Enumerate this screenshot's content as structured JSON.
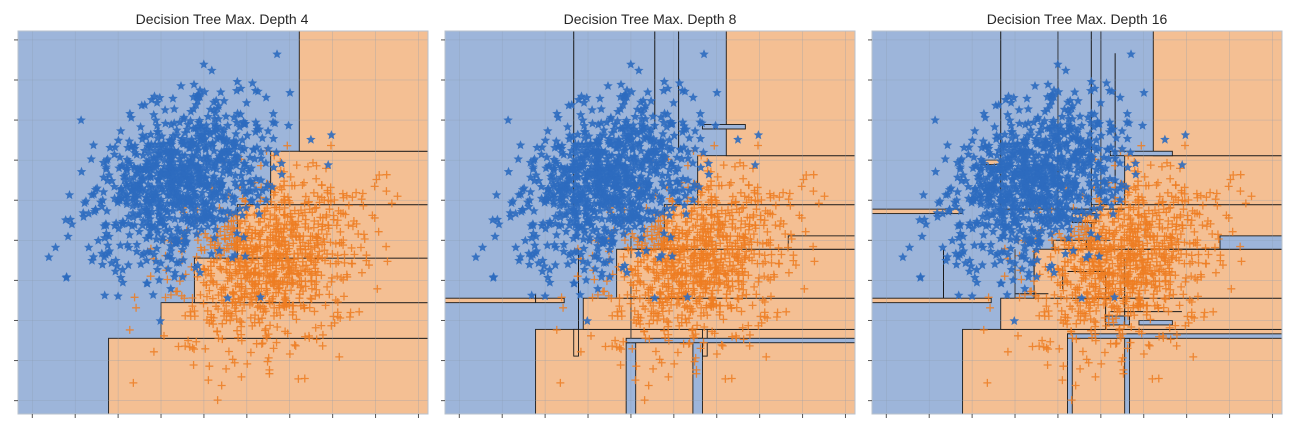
{
  "colors": {
    "class_a_region": "#9db5da",
    "class_b_region": "#f4bf93",
    "class_a_marker": "#2e6bbf",
    "class_b_marker": "#ee7d22",
    "boundary": "#1a1a1a",
    "grid": "#8a9bb0"
  },
  "chart_data": [
    {
      "type": "scatter",
      "title": "Decision Tree Max. Depth 4",
      "xlabel": "",
      "ylabel": "",
      "xlim": [
        -4.3,
        4.3
      ],
      "ylim": [
        -4.3,
        4.3
      ],
      "grid": true,
      "series": [
        {
          "marker": "star",
          "color": "#2e6bbf",
          "center": [
            -0.9,
            0.9
          ],
          "spread": [
            1.1,
            0.75
          ],
          "count": 900
        },
        {
          "marker": "plus",
          "color": "#ee7d22",
          "center": [
            1.0,
            -0.9
          ],
          "spread": [
            1.05,
            0.8
          ],
          "count": 900
        }
      ],
      "decision_regions_b": [
        [
          -2.4,
          -4.3,
          4.3,
          -2.6
        ],
        [
          -1.3,
          -2.6,
          4.3,
          -1.8
        ],
        [
          -0.6,
          -1.8,
          4.3,
          -0.8
        ],
        [
          0.3,
          -0.8,
          4.3,
          0.4
        ],
        [
          1.0,
          0.4,
          4.3,
          1.6
        ],
        [
          1.6,
          1.6,
          4.3,
          4.3
        ]
      ]
    },
    {
      "type": "scatter",
      "title": "Decision Tree Max. Depth 8",
      "xlabel": "",
      "ylabel": "",
      "xlim": [
        -4.3,
        4.3
      ],
      "ylim": [
        -4.3,
        4.3
      ],
      "grid": true,
      "series": [
        {
          "marker": "star",
          "color": "#2e6bbf",
          "center": [
            -0.9,
            0.9
          ],
          "spread": [
            1.1,
            0.75
          ],
          "count": 900
        },
        {
          "marker": "plus",
          "color": "#ee7d22",
          "center": [
            1.0,
            -0.9
          ],
          "spread": [
            1.05,
            0.8
          ],
          "count": 900
        }
      ],
      "decision_regions_b": [
        [
          -2.4,
          -4.3,
          4.3,
          -2.4
        ],
        [
          -1.4,
          -2.4,
          4.3,
          -1.7
        ],
        [
          -0.7,
          -1.7,
          4.3,
          -0.6
        ],
        [
          0.3,
          -0.6,
          4.3,
          0.4
        ],
        [
          1.0,
          0.4,
          4.3,
          1.5
        ],
        [
          1.6,
          1.5,
          4.3,
          4.3
        ],
        [
          -4.3,
          -1.8,
          -1.8,
          -1.7
        ],
        [
          -1.6,
          -3.0,
          -1.5,
          -2.4
        ],
        [
          1.1,
          -3.0,
          1.2,
          -2.4
        ],
        [
          2.9,
          -0.6,
          4.3,
          -0.3
        ]
      ],
      "decision_regions_a": [
        [
          -0.5,
          -4.3,
          -0.3,
          -2.7
        ],
        [
          0.9,
          -4.3,
          1.1,
          -2.6
        ],
        [
          -0.5,
          -2.7,
          4.3,
          -2.6
        ],
        [
          1.1,
          2.1,
          2.0,
          2.2
        ]
      ],
      "boundary_lines": [
        [
          [
            -1.6,
            0.2
          ],
          [
            -1.6,
            4.3
          ]
        ],
        [
          [
            0.1,
            2.1
          ],
          [
            0.1,
            4.3
          ]
        ],
        [
          [
            0.6,
            1.6
          ],
          [
            0.6,
            4.3
          ]
        ],
        [
          [
            -0.6,
            -0.6
          ],
          [
            0.8,
            -0.6
          ]
        ],
        [
          [
            -1.5,
            -2.4
          ],
          [
            -1.5,
            -0.6
          ]
        ],
        [
          [
            -0.4,
            -2.6
          ],
          [
            -0.4,
            -1.3
          ]
        ],
        [
          [
            -0.4,
            -0.8
          ],
          [
            -0.4,
            -0.3
          ]
        ],
        [
          [
            -2.4,
            -1.8
          ],
          [
            -2.4,
            -1.6
          ]
        ]
      ]
    },
    {
      "type": "scatter",
      "title": "Decision Tree Max. Depth 16",
      "xlabel": "",
      "ylabel": "",
      "xlim": [
        -4.3,
        4.3
      ],
      "ylim": [
        -4.3,
        4.3
      ],
      "grid": true,
      "series": [
        {
          "marker": "star",
          "color": "#2e6bbf",
          "center": [
            -0.9,
            0.9
          ],
          "spread": [
            1.1,
            0.75
          ],
          "count": 900
        },
        {
          "marker": "plus",
          "color": "#ee7d22",
          "center": [
            1.0,
            -0.9
          ],
          "spread": [
            1.05,
            0.8
          ],
          "count": 900
        }
      ],
      "decision_regions_b": [
        [
          -2.4,
          -4.3,
          4.3,
          -2.4
        ],
        [
          -1.6,
          -2.4,
          4.3,
          -1.7
        ],
        [
          -0.9,
          -1.7,
          4.3,
          -0.6
        ],
        [
          0.3,
          -0.6,
          4.3,
          0.4
        ],
        [
          1.0,
          0.4,
          4.3,
          1.5
        ],
        [
          1.6,
          1.5,
          4.3,
          4.3
        ],
        [
          -4.3,
          0.2,
          -2.4,
          0.3
        ],
        [
          -4.3,
          -1.8,
          -1.8,
          -1.7
        ],
        [
          -2.0,
          1.3,
          -1.6,
          1.4
        ],
        [
          -0.1,
          0.0,
          0.4,
          0.2
        ],
        [
          -0.5,
          -0.6,
          0.2,
          -0.4
        ]
      ],
      "decision_regions_a": [
        [
          -0.2,
          -4.3,
          -0.1,
          -2.5
        ],
        [
          1.0,
          -4.3,
          1.1,
          -2.6
        ],
        [
          -0.2,
          -2.6,
          4.3,
          -2.5
        ],
        [
          0.6,
          -2.3,
          1.1,
          -2.1
        ],
        [
          1.3,
          -2.3,
          2.0,
          -2.2
        ],
        [
          3.0,
          -0.6,
          4.3,
          -0.3
        ],
        [
          0.7,
          1.5,
          2.0,
          1.6
        ]
      ],
      "boundary_lines": [
        [
          [
            -1.6,
            0.3
          ],
          [
            -1.6,
            4.3
          ]
        ],
        [
          [
            -0.4,
            0.3
          ],
          [
            -0.4,
            4.3
          ]
        ],
        [
          [
            0.3,
            0.4
          ],
          [
            0.3,
            4.3
          ]
        ],
        [
          [
            0.5,
            0.4
          ],
          [
            0.5,
            4.3
          ]
        ],
        [
          [
            0.8,
            0.4
          ],
          [
            0.8,
            3.8
          ]
        ],
        [
          [
            -1.6,
            0.3
          ],
          [
            1.0,
            0.3
          ]
        ],
        [
          [
            -0.5,
            -0.4
          ],
          [
            0.7,
            -0.4
          ]
        ],
        [
          [
            0.6,
            -2.4
          ],
          [
            0.6,
            -1.1
          ]
        ],
        [
          [
            0.7,
            -2.0
          ],
          [
            2.2,
            -2.0
          ]
        ],
        [
          [
            -0.2,
            -1.1
          ],
          [
            0.6,
            -1.1
          ]
        ],
        [
          [
            1.0,
            -2.3
          ],
          [
            1.0,
            -0.8
          ]
        ],
        [
          [
            -2.8,
            -1.7
          ],
          [
            -2.8,
            -0.6
          ]
        ],
        [
          [
            -1.3,
            -1.7
          ],
          [
            -1.3,
            -0.6
          ]
        ],
        [
          [
            -0.9,
            -1.2
          ],
          [
            -0.9,
            -0.6
          ]
        ],
        [
          [
            -0.3,
            -1.5
          ],
          [
            -0.3,
            -1.0
          ]
        ],
        [
          [
            -1.3,
            -1.6
          ],
          [
            -0.6,
            -1.6
          ]
        ],
        [
          [
            1.0,
            -0.6
          ],
          [
            3.0,
            -0.6
          ]
        ]
      ]
    }
  ]
}
